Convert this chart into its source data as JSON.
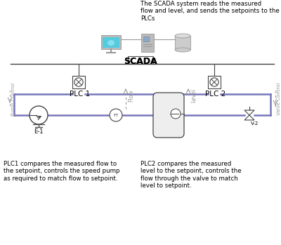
{
  "bg_color": "#ffffff",
  "top_text": "The SCADA system reads the measured\nflow and level, and sends the setpoints to the\nPLCs",
  "scada_label": "SCADA",
  "plc1_label": "PLC 1",
  "plc2_label": "PLC 2",
  "pump_label": "E-1",
  "valve_label": "V-2",
  "flow_label": "Flow",
  "level_label": "Level",
  "pump_ctrl_label": "Pump Control",
  "valve_ctrl_label": "Valve Control",
  "bottom_left_text": "PLC1 compares the measured flow to\nthe setpoint, controls the speed pump\nas required to match flow to setpoint.",
  "bottom_right_text": "PLC2 compares the measured\nlevel to the setpoint, controls the\nflow through the valve to match\nlevel to setpoint.",
  "pipe_color": "#7777bb",
  "signal_color": "#999999",
  "dark_color": "#444444",
  "text_color": "#000000",
  "monitor_color": "#55ccdd",
  "box_gray": "#cccccc"
}
